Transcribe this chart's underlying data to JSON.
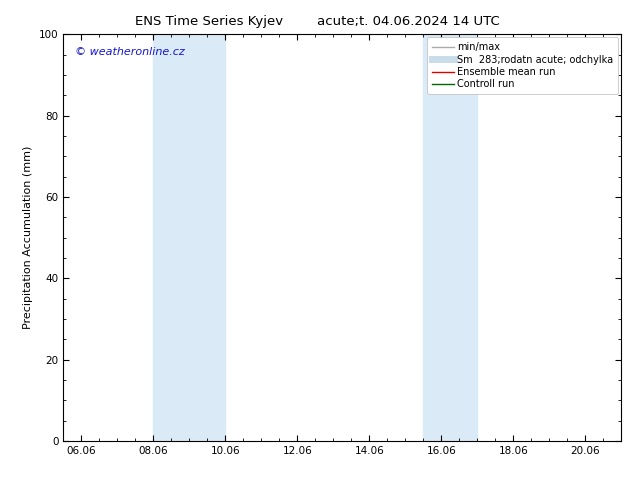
{
  "title_left": "ENS Time Series Kyjev",
  "title_right": "acute;t. 04.06.2024 14 UTC",
  "ylabel": "Precipitation Accumulation (mm)",
  "ylim": [
    0,
    100
  ],
  "xlim_start": 5.5,
  "xlim_end": 21.0,
  "xtick_labels": [
    "06.06",
    "08.06",
    "10.06",
    "12.06",
    "14.06",
    "16.06",
    "18.06",
    "20.06"
  ],
  "xtick_positions": [
    6.0,
    8.0,
    10.0,
    12.0,
    14.0,
    16.0,
    18.0,
    20.0
  ],
  "ytick_positions": [
    0,
    20,
    40,
    60,
    80,
    100
  ],
  "shaded_regions": [
    {
      "x_start": 8.0,
      "x_end": 10.0
    },
    {
      "x_start": 15.5,
      "x_end": 17.0
    }
  ],
  "shaded_color": "#daeaf6",
  "background_color": "#ffffff",
  "watermark_text": "© weatheronline.cz",
  "watermark_color": "#1515cc",
  "legend_entries": [
    {
      "label": "min/max",
      "color": "#aaaaaa",
      "linestyle": "-",
      "linewidth": 1.0
    },
    {
      "label": "Sm  283;rodatn acute; odchylka",
      "color": "#c8dcea",
      "linestyle": "-",
      "linewidth": 5
    },
    {
      "label": "Ensemble mean run",
      "color": "#dd0000",
      "linestyle": "-",
      "linewidth": 1.0
    },
    {
      "label": "Controll run",
      "color": "#006600",
      "linestyle": "-",
      "linewidth": 1.0
    }
  ],
  "title_fontsize": 9.5,
  "axis_label_fontsize": 8,
  "tick_fontsize": 7.5,
  "watermark_fontsize": 8,
  "legend_fontsize": 7
}
